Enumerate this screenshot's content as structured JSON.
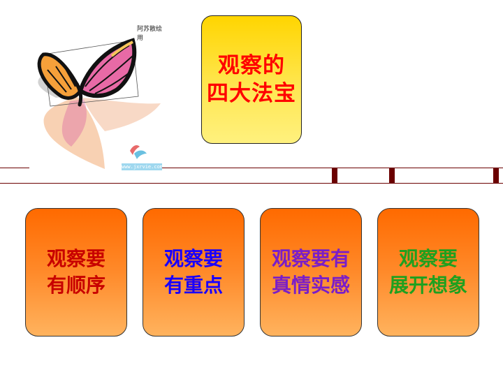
{
  "image_caption": "阿苏散绘用",
  "watermark_text": "www.jxrvie.com",
  "title_box": {
    "lines": [
      "观察的",
      "四大法宝"
    ],
    "text_color": "#ff0000",
    "fill_top": "#ffd500",
    "fill_bottom": "#fff17e"
  },
  "divider_color": "#6b0000",
  "cards": [
    {
      "lines": [
        "观察要",
        "有顺序"
      ],
      "text_color": "#c80000"
    },
    {
      "lines": [
        "观察要",
        "有重点"
      ],
      "text_color": "#1a00ff"
    },
    {
      "lines": [
        "观察要有",
        "真情实感"
      ],
      "text_color": "#7a1ec8"
    },
    {
      "lines": [
        "观察要",
        "展开想象"
      ],
      "text_color": "#1fa01f"
    }
  ],
  "card_fill_top": "#ff6a00",
  "card_fill_bottom": "#ffb35e"
}
